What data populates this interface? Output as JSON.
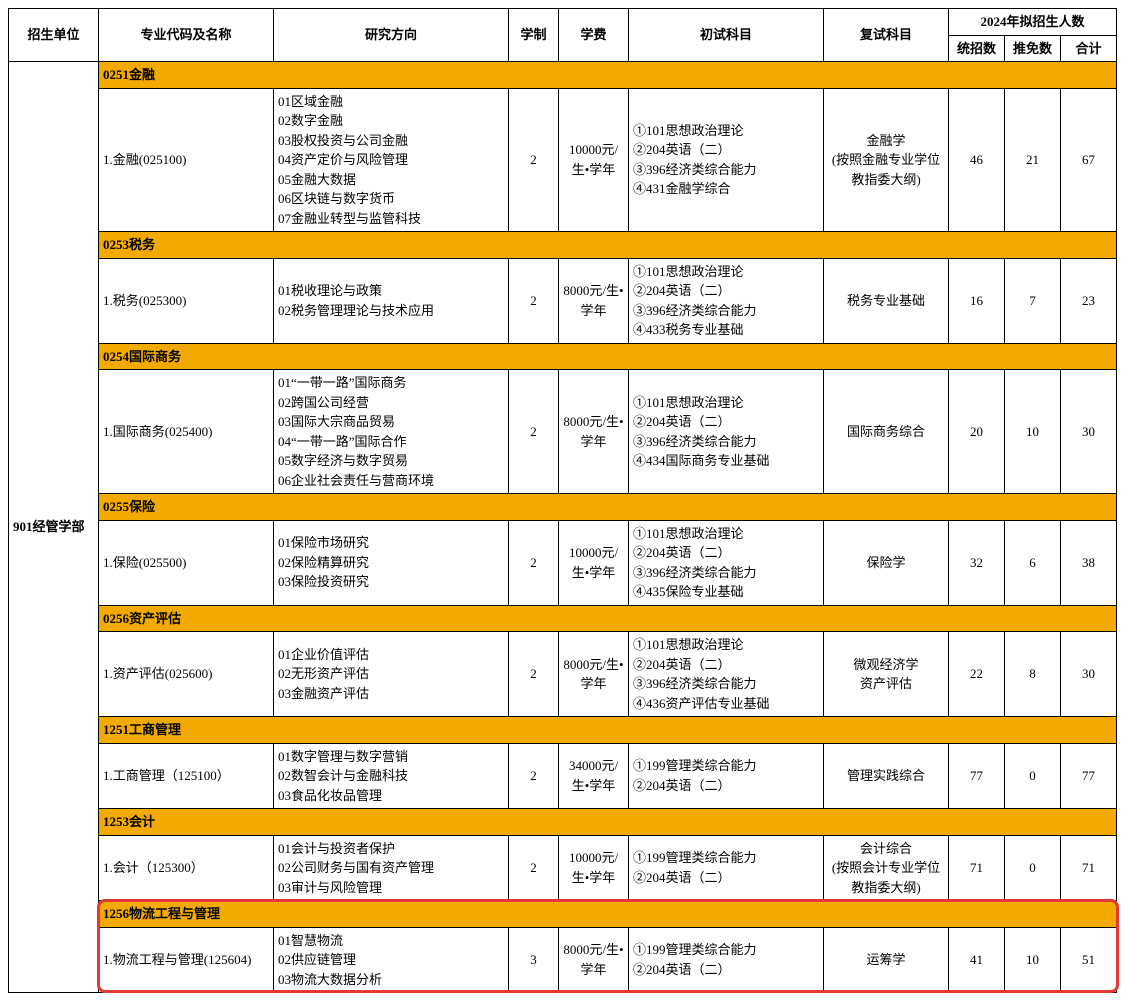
{
  "colors": {
    "section_bg": "#f2a900",
    "border": "#000000",
    "highlight_border": "#e53935",
    "background": "#ffffff",
    "text": "#000000"
  },
  "typography": {
    "font_family": "SimSun",
    "base_fontsize": 13
  },
  "header": {
    "unit": "招生单位",
    "major": "专业代码及名称",
    "direction": "研究方向",
    "length": "学制",
    "fee": "学费",
    "exam1": "初试科目",
    "exam2": "复试科目",
    "year_group": "2024年拟招生人数",
    "n1": "统招数",
    "n2": "推免数",
    "n3": "合计"
  },
  "unit": "901经管学部",
  "sections": [
    {
      "code": "0251金融",
      "major": "1.金融(025100)",
      "direction": "01区域金融\n02数字金融\n03股权投资与公司金融\n04资产定价与风险管理\n05金融大数据\n06区块链与数字货币\n07金融业转型与监管科技",
      "length": "2",
      "fee": "10000元/生•学年",
      "exam1": "①101思想政治理论\n②204英语（二）\n③396经济类综合能力\n④431金融学综合",
      "exam2": "金融学\n(按照金融专业学位教指委大纲)",
      "n1": "46",
      "n2": "21",
      "n3": "67"
    },
    {
      "code": "0253税务",
      "major": "1.税务(025300)",
      "direction": "01税收理论与政策\n02税务管理理论与技术应用",
      "length": "2",
      "fee": "8000元/生•学年",
      "exam1": "①101思想政治理论\n②204英语（二）\n③396经济类综合能力\n④433税务专业基础",
      "exam2": "税务专业基础",
      "n1": "16",
      "n2": "7",
      "n3": "23"
    },
    {
      "code": "0254国际商务",
      "major": "1.国际商务(025400)",
      "direction": "01“一带一路”国际商务\n02跨国公司经营\n03国际大宗商品贸易\n04“一带一路”国际合作\n05数字经济与数字贸易\n06企业社会责任与营商环境",
      "length": "2",
      "fee": "8000元/生•学年",
      "exam1": "①101思想政治理论\n②204英语（二）\n③396经济类综合能力\n④434国际商务专业基础",
      "exam2": "国际商务综合",
      "n1": "20",
      "n2": "10",
      "n3": "30"
    },
    {
      "code": "0255保险",
      "major": "1.保险(025500)",
      "direction": "01保险市场研究\n02保险精算研究\n03保险投资研究",
      "length": "2",
      "fee": "10000元/生•学年",
      "exam1": "①101思想政治理论\n②204英语（二）\n③396经济类综合能力\n④435保险专业基础",
      "exam2": "保险学",
      "n1": "32",
      "n2": "6",
      "n3": "38"
    },
    {
      "code": "0256资产评估",
      "major": "1.资产评估(025600)",
      "direction": "01企业价值评估\n02无形资产评估\n03金融资产评估",
      "length": "2",
      "fee": "8000元/生•学年",
      "exam1": "①101思想政治理论\n②204英语（二）\n③396经济类综合能力\n④436资产评估专业基础",
      "exam2": "微观经济学\n资产评估",
      "n1": "22",
      "n2": "8",
      "n3": "30"
    },
    {
      "code": "1251工商管理",
      "major": "1.工商管理（125100）",
      "direction": "01数字管理与数字营销\n02数智会计与金融科技\n03食品化妆品管理",
      "length": "2",
      "fee": "34000元/生•学年",
      "exam1": "①199管理类综合能力\n②204英语（二）",
      "exam2": "管理实践综合",
      "n1": "77",
      "n2": "0",
      "n3": "77"
    },
    {
      "code": "1253会计",
      "major": "1.会计（125300）",
      "direction": "01会计与投资者保护\n02公司财务与国有资产管理\n03审计与风险管理",
      "length": "2",
      "fee": "10000元/生•学年",
      "exam1": "①199管理类综合能力\n②204英语（二）",
      "exam2": "会计综合\n(按照会计专业学位教指委大纲)",
      "n1": "71",
      "n2": "0",
      "n3": "71"
    },
    {
      "code": "1256物流工程与管理",
      "major": "1.物流工程与管理(125604)",
      "direction": "01智慧物流\n02供应链管理\n03物流大数据分析",
      "length": "3",
      "fee": "8000元/生•学年",
      "exam1": "①199管理类综合能力\n②204英语（二）",
      "exam2": "运筹学",
      "n1": "41",
      "n2": "10",
      "n3": "51",
      "highlight": true
    }
  ]
}
